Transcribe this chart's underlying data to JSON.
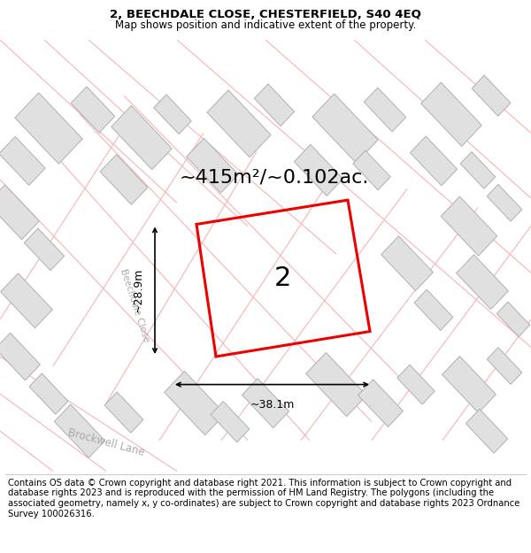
{
  "title": "2, BEECHDALE CLOSE, CHESTERFIELD, S40 4EQ",
  "subtitle": "Map shows position and indicative extent of the property.",
  "footer": "Contains OS data © Crown copyright and database right 2021. This information is subject to Crown copyright and database rights 2023 and is reproduced with the permission of HM Land Registry. The polygons (including the associated geometry, namely x, y co-ordinates) are subject to Crown copyright and database rights 2023 Ordnance Survey 100026316.",
  "area_label": "~415m²/~0.102ac.",
  "width_label": "~38.1m",
  "height_label": "~28.9m",
  "plot_number": "2",
  "street_label_beechdale": "Beechdale Close",
  "street_label_brockwell": "Brockwell Lane",
  "map_bg": "#f8f8f8",
  "building_fill": "#e0e0e0",
  "building_stroke": "#b0b0b0",
  "road_color": "#f5b8b8",
  "highlight_color": "#ee0000",
  "title_fontsize": 9.5,
  "subtitle_fontsize": 8.5,
  "footer_fontsize": 7.2,
  "area_fontsize": 16,
  "dim_fontsize": 9,
  "plot_num_fontsize": 22
}
